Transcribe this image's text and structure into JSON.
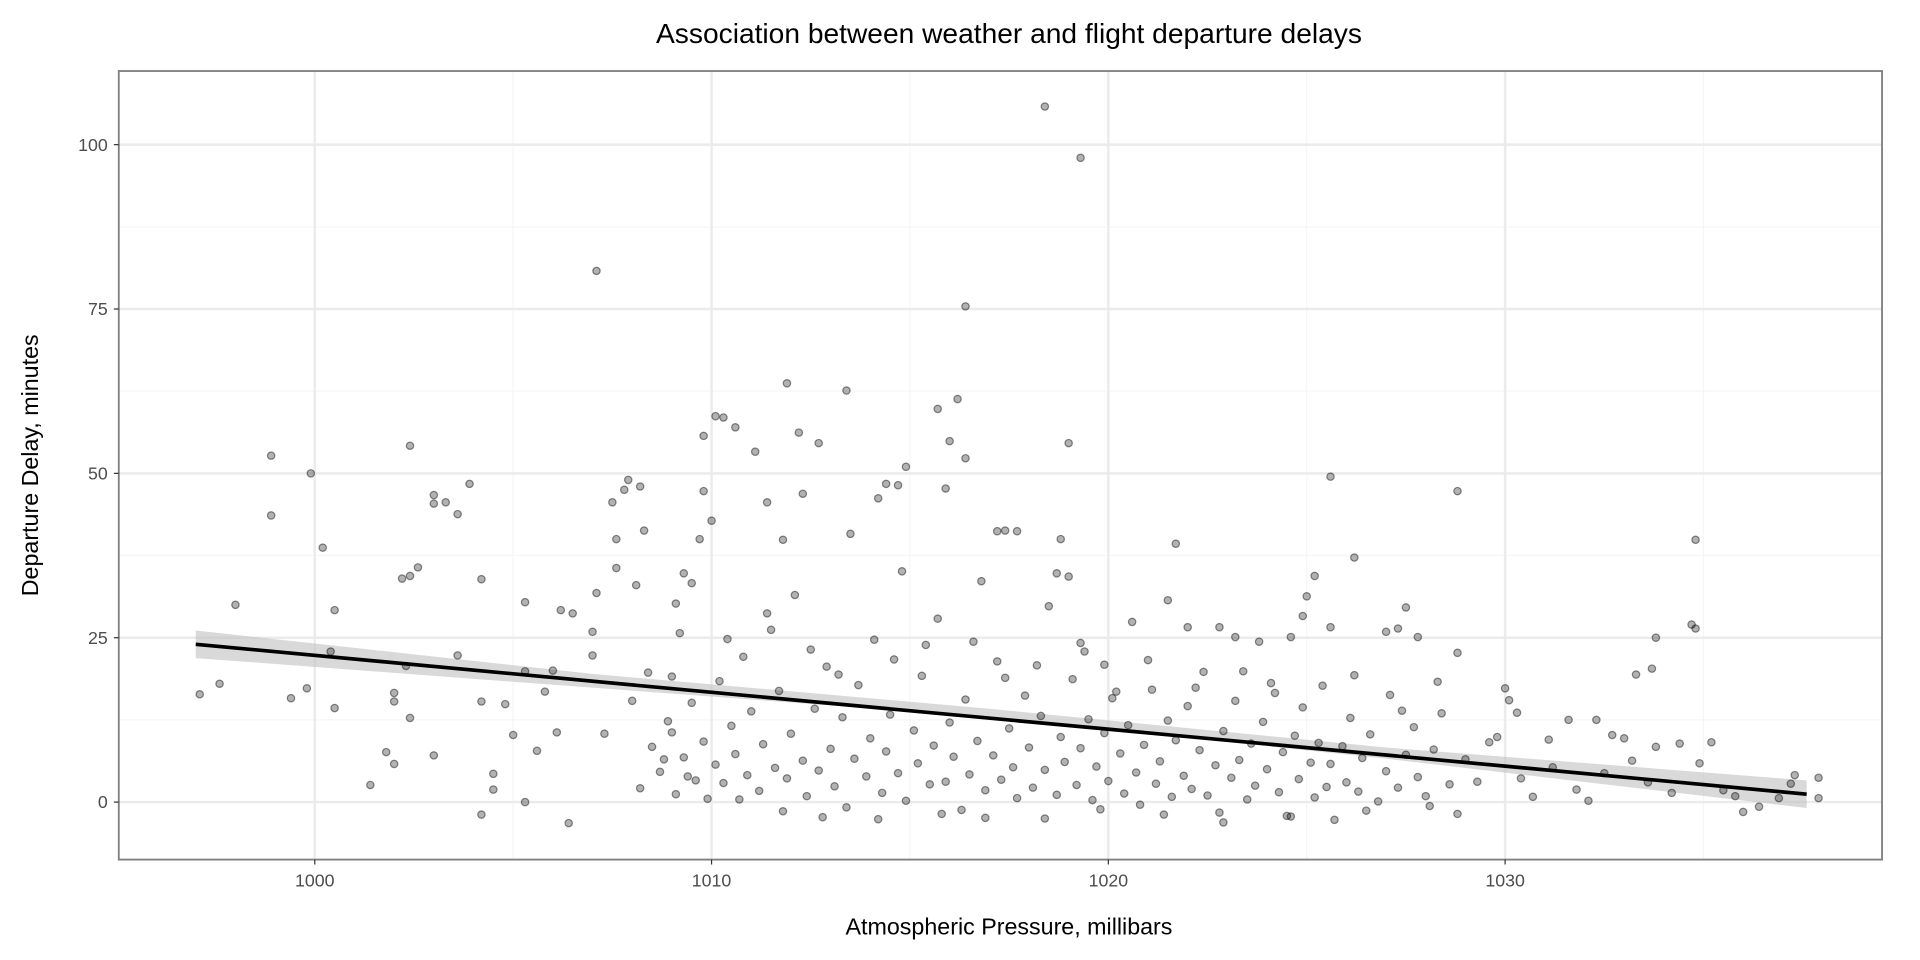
{
  "chart_data": {
    "type": "scatter",
    "title": "Association between weather and flight departure delays",
    "xlabel": "Atmospheric Pressure, millibars",
    "ylabel": "Departure Delay, minutes",
    "xlim": [
      995.06,
      1039.5
    ],
    "ylim": [
      -8.75,
      111.2
    ],
    "xticks": [
      1000,
      1010,
      1020,
      1030
    ],
    "yticks": [
      0,
      25,
      50,
      75,
      100
    ],
    "grid": true,
    "colors": {
      "point": "#000000",
      "line": "#000000",
      "ribbon": "#bfbfbf",
      "grid": "#ebebeb",
      "border": "#7f7f7f"
    },
    "trend": {
      "method": "linear",
      "x": [
        997.0,
        1037.6
      ],
      "y": [
        24.0,
        1.2
      ]
    },
    "ribbon": [
      [
        997.0,
        21.9,
        26.1
      ],
      [
        1007.0,
        17.4,
        19.5
      ],
      [
        1017.0,
        12.9,
        14.2
      ],
      [
        1027.0,
        6.6,
        8.3
      ],
      [
        1037.6,
        -0.9,
        3.3
      ]
    ],
    "points": [
      [
        997.1,
        16.4
      ],
      [
        997.6,
        18
      ],
      [
        998.0,
        30
      ],
      [
        998.9,
        52.7
      ],
      [
        998.9,
        43.6
      ],
      [
        999.4,
        15.8
      ],
      [
        999.8,
        17.3
      ],
      [
        999.9,
        50
      ],
      [
        1000.2,
        38.7
      ],
      [
        1000.5,
        29.2
      ],
      [
        1000.4,
        22.9
      ],
      [
        1000.5,
        14.3
      ],
      [
        1001.4,
        2.6
      ],
      [
        1001.8,
        7.6
      ],
      [
        1002.0,
        16.6
      ],
      [
        1002.0,
        15.3
      ],
      [
        1002.0,
        5.8
      ],
      [
        1002.2,
        34
      ],
      [
        1002.4,
        34.4
      ],
      [
        1002.6,
        35.7
      ],
      [
        1002.4,
        54.2
      ],
      [
        1002.3,
        20.7
      ],
      [
        1002.4,
        12.8
      ],
      [
        1003.0,
        46.7
      ],
      [
        1003.0,
        45.4
      ],
      [
        1003.3,
        45.6
      ],
      [
        1003.6,
        43.8
      ],
      [
        1003.9,
        48.4
      ],
      [
        1003.6,
        22.3
      ],
      [
        1003.0,
        7.1
      ],
      [
        1004.2,
        33.9
      ],
      [
        1004.2,
        15.3
      ],
      [
        1004.2,
        -1.9
      ],
      [
        1004.5,
        4.3
      ],
      [
        1004.5,
        1.9
      ],
      [
        1004.8,
        14.9
      ],
      [
        1005.0,
        10.2
      ],
      [
        1005.3,
        30.4
      ],
      [
        1005.3,
        19.9
      ],
      [
        1005.3,
        0
      ],
      [
        1005.6,
        7.8
      ],
      [
        1005.8,
        16.8
      ],
      [
        1006.0,
        20
      ],
      [
        1006.2,
        29.2
      ],
      [
        1006.5,
        28.7
      ],
      [
        1006.4,
        -3.2
      ],
      [
        1006.1,
        10.6
      ],
      [
        1007.1,
        80.8
      ],
      [
        1007.1,
        31.8
      ],
      [
        1007.0,
        25.9
      ],
      [
        1007.0,
        22.3
      ],
      [
        1007.3,
        10.4
      ],
      [
        1007.6,
        40
      ],
      [
        1007.5,
        45.6
      ],
      [
        1007.8,
        47.5
      ],
      [
        1007.9,
        49
      ],
      [
        1008.2,
        48
      ],
      [
        1007.6,
        35.6
      ],
      [
        1008.3,
        41.3
      ],
      [
        1008.1,
        33
      ],
      [
        1008.4,
        19.7
      ],
      [
        1008.8,
        6.5
      ],
      [
        1009.0,
        10.6
      ],
      [
        1009.1,
        30.2
      ],
      [
        1009.2,
        25.7
      ],
      [
        1009.3,
        34.8
      ],
      [
        1009.5,
        33.3
      ],
      [
        1009.8,
        47.3
      ],
      [
        1009.7,
        40
      ],
      [
        1009.8,
        55.7
      ],
      [
        1010.0,
        42.8
      ],
      [
        1010.1,
        58.7
      ],
      [
        1010.3,
        58.5
      ],
      [
        1010.6,
        57
      ],
      [
        1011.1,
        53.3
      ],
      [
        1011.8,
        39.9
      ],
      [
        1011.9,
        63.7
      ],
      [
        1012.2,
        56.2
      ],
      [
        1012.3,
        46.9
      ],
      [
        1012.7,
        54.6
      ],
      [
        1011.4,
        45.6
      ],
      [
        1013.4,
        62.6
      ],
      [
        1013.5,
        40.8
      ],
      [
        1014.2,
        46.2
      ],
      [
        1014.4,
        48.4
      ],
      [
        1014.7,
        48.2
      ],
      [
        1014.9,
        51
      ],
      [
        1015.7,
        59.8
      ],
      [
        1015.9,
        47.7
      ],
      [
        1016.2,
        61.3
      ],
      [
        1016.4,
        75.4
      ],
      [
        1016.4,
        52.3
      ],
      [
        1016.0,
        54.9
      ],
      [
        1017.2,
        41.2
      ],
      [
        1017.4,
        41.3
      ],
      [
        1017.7,
        41.2
      ],
      [
        1018.4,
        105.8
      ],
      [
        1019.3,
        98
      ],
      [
        1019.0,
        54.6
      ],
      [
        1018.8,
        40
      ],
      [
        1018.7,
        34.8
      ],
      [
        1019.0,
        34.3
      ],
      [
        1019.3,
        24.2
      ],
      [
        1019.9,
        20.9
      ],
      [
        1020.6,
        27.4
      ],
      [
        1021.5,
        30.7
      ],
      [
        1021.7,
        39.3
      ],
      [
        1022.0,
        26.6
      ],
      [
        1022.8,
        26.6
      ],
      [
        1023.2,
        25.1
      ],
      [
        1023.8,
        24.4
      ],
      [
        1024.6,
        25.1
      ],
      [
        1024.9,
        28.3
      ],
      [
        1025.0,
        31.3
      ],
      [
        1025.2,
        34.4
      ],
      [
        1025.6,
        49.5
      ],
      [
        1025.6,
        26.6
      ],
      [
        1026.2,
        37.2
      ],
      [
        1027.0,
        25.9
      ],
      [
        1027.5,
        29.6
      ],
      [
        1027.3,
        26.4
      ],
      [
        1027.8,
        25.1
      ],
      [
        1028.8,
        47.3
      ],
      [
        1028.8,
        22.7
      ],
      [
        1029.8,
        9.9
      ],
      [
        1030.0,
        17.3
      ],
      [
        1030.3,
        13.6
      ],
      [
        1031.1,
        9.5
      ],
      [
        1031.6,
        12.5
      ],
      [
        1032.3,
        12.5
      ],
      [
        1032.7,
        10.2
      ],
      [
        1033.0,
        9.7
      ],
      [
        1033.3,
        19.4
      ],
      [
        1033.7,
        20.3
      ],
      [
        1033.8,
        25
      ],
      [
        1034.4,
        8.9
      ],
      [
        1033.8,
        8.4
      ],
      [
        1034.7,
        27
      ],
      [
        1034.8,
        26.4
      ],
      [
        1034.8,
        39.9
      ],
      [
        1035.2,
        9.1
      ],
      [
        1035.8,
        0.9
      ],
      [
        1036.0,
        -1.5
      ],
      [
        1036.4,
        -0.7
      ],
      [
        1036.9,
        0.6
      ],
      [
        1037.2,
        2.8
      ],
      [
        1037.9,
        3.7
      ],
      [
        1037.9,
        0.6
      ],
      [
        1037.3,
        4.1
      ],
      [
        1008.2,
        2.1
      ],
      [
        1008.5,
        8.4
      ],
      [
        1008.7,
        4.6
      ],
      [
        1008.9,
        12.3
      ],
      [
        1009.1,
        1.2
      ],
      [
        1009.3,
        6.8
      ],
      [
        1009.5,
        15.1
      ],
      [
        1009.6,
        3.3
      ],
      [
        1009.8,
        9.2
      ],
      [
        1009.9,
        0.5
      ],
      [
        1010.1,
        5.7
      ],
      [
        1010.2,
        18.4
      ],
      [
        1010.3,
        2.9
      ],
      [
        1010.5,
        11.6
      ],
      [
        1010.6,
        7.3
      ],
      [
        1010.8,
        22.1
      ],
      [
        1010.9,
        4.1
      ],
      [
        1011.0,
        13.8
      ],
      [
        1011.2,
        1.7
      ],
      [
        1011.3,
        8.8
      ],
      [
        1011.5,
        26.2
      ],
      [
        1011.6,
        5.2
      ],
      [
        1011.7,
        16.9
      ],
      [
        1011.9,
        3.6
      ],
      [
        1012.0,
        10.4
      ],
      [
        1012.1,
        31.5
      ],
      [
        1012.3,
        6.3
      ],
      [
        1012.4,
        0.9
      ],
      [
        1012.6,
        14.2
      ],
      [
        1012.7,
        4.8
      ],
      [
        1012.9,
        20.6
      ],
      [
        1013.0,
        8.1
      ],
      [
        1013.1,
        2.4
      ],
      [
        1013.3,
        12.9
      ],
      [
        1013.4,
        -0.8
      ],
      [
        1013.6,
        6.6
      ],
      [
        1013.7,
        17.8
      ],
      [
        1013.9,
        3.9
      ],
      [
        1014.0,
        9.7
      ],
      [
        1014.1,
        24.7
      ],
      [
        1014.3,
        1.4
      ],
      [
        1014.4,
        7.7
      ],
      [
        1014.5,
        13.3
      ],
      [
        1014.7,
        4.4
      ],
      [
        1014.8,
        35.1
      ],
      [
        1014.9,
        0.2
      ],
      [
        1015.1,
        10.9
      ],
      [
        1015.2,
        5.9
      ],
      [
        1015.3,
        19.2
      ],
      [
        1015.5,
        2.7
      ],
      [
        1015.6,
        8.6
      ],
      [
        1015.7,
        27.9
      ],
      [
        1015.9,
        3.1
      ],
      [
        1016.0,
        12.1
      ],
      [
        1016.1,
        6.9
      ],
      [
        1016.3,
        -1.2
      ],
      [
        1016.4,
        15.6
      ],
      [
        1016.5,
        4.2
      ],
      [
        1016.7,
        9.3
      ],
      [
        1016.8,
        33.6
      ],
      [
        1016.9,
        1.8
      ],
      [
        1017.1,
        7.1
      ],
      [
        1017.2,
        21.4
      ],
      [
        1017.3,
        3.4
      ],
      [
        1017.5,
        11.2
      ],
      [
        1017.6,
        5.3
      ],
      [
        1017.7,
        0.6
      ],
      [
        1017.9,
        16.2
      ],
      [
        1018.0,
        8.3
      ],
      [
        1018.1,
        2.2
      ],
      [
        1018.3,
        13.1
      ],
      [
        1018.4,
        4.9
      ],
      [
        1018.5,
        29.8
      ],
      [
        1018.7,
        1.1
      ],
      [
        1018.8,
        9.9
      ],
      [
        1018.9,
        6.1
      ],
      [
        1019.1,
        18.7
      ],
      [
        1019.2,
        2.6
      ],
      [
        1019.3,
        8.2
      ],
      [
        1019.5,
        12.6
      ],
      [
        1019.6,
        0.3
      ],
      [
        1019.7,
        5.4
      ],
      [
        1019.9,
        10.5
      ],
      [
        1020.0,
        3.2
      ],
      [
        1020.1,
        15.8
      ],
      [
        1020.3,
        7.4
      ],
      [
        1020.4,
        1.3
      ],
      [
        1020.5,
        11.7
      ],
      [
        1020.7,
        4.5
      ],
      [
        1020.8,
        -0.4
      ],
      [
        1020.9,
        8.7
      ],
      [
        1021.1,
        17.1
      ],
      [
        1021.2,
        2.8
      ],
      [
        1021.3,
        6.2
      ],
      [
        1021.5,
        12.4
      ],
      [
        1021.6,
        0.8
      ],
      [
        1021.7,
        9.4
      ],
      [
        1021.9,
        4.0
      ],
      [
        1022.0,
        14.6
      ],
      [
        1022.1,
        2.0
      ],
      [
        1022.3,
        7.9
      ],
      [
        1022.4,
        19.8
      ],
      [
        1022.5,
        1.0
      ],
      [
        1022.7,
        5.6
      ],
      [
        1022.8,
        -1.6
      ],
      [
        1022.9,
        10.8
      ],
      [
        1023.1,
        3.7
      ],
      [
        1023.2,
        15.4
      ],
      [
        1023.3,
        6.4
      ],
      [
        1023.5,
        0.4
      ],
      [
        1023.6,
        8.9
      ],
      [
        1023.7,
        2.5
      ],
      [
        1023.9,
        12.2
      ],
      [
        1024.0,
        5.0
      ],
      [
        1024.1,
        18.1
      ],
      [
        1024.3,
        1.5
      ],
      [
        1024.4,
        7.6
      ],
      [
        1024.5,
        -2.1
      ],
      [
        1024.7,
        10.1
      ],
      [
        1024.8,
        3.5
      ],
      [
        1024.9,
        14.4
      ],
      [
        1025.1,
        6.0
      ],
      [
        1025.2,
        0.7
      ],
      [
        1025.3,
        9.0
      ],
      [
        1025.5,
        2.3
      ],
      [
        1025.6,
        5.8
      ],
      [
        1025.7,
        -2.7
      ],
      [
        1025.9,
        8.5
      ],
      [
        1026.0,
        3.0
      ],
      [
        1026.1,
        12.8
      ],
      [
        1026.3,
        1.6
      ],
      [
        1026.4,
        6.7
      ],
      [
        1026.6,
        10.3
      ],
      [
        1026.8,
        0.1
      ],
      [
        1027.0,
        4.7
      ],
      [
        1027.1,
        16.3
      ],
      [
        1027.3,
        2.2
      ],
      [
        1027.5,
        7.2
      ],
      [
        1027.7,
        11.4
      ],
      [
        1027.8,
        3.8
      ],
      [
        1028.0,
        0.9
      ],
      [
        1028.2,
        8.0
      ],
      [
        1028.4,
        13.5
      ],
      [
        1028.6,
        2.7
      ],
      [
        1028.8,
        -1.8
      ],
      [
        1029.0,
        6.5
      ],
      [
        1029.3,
        3.1
      ],
      [
        1029.6,
        9.1
      ],
      [
        1030.1,
        15.5
      ],
      [
        1030.4,
        3.6
      ],
      [
        1030.7,
        0.8
      ],
      [
        1031.2,
        5.3
      ],
      [
        1031.8,
        1.9
      ],
      [
        1032.1,
        0.2
      ],
      [
        1032.5,
        4.4
      ],
      [
        1033.2,
        6.3
      ],
      [
        1033.6,
        3.0
      ],
      [
        1034.2,
        1.4
      ],
      [
        1034.9,
        5.9
      ],
      [
        1035.5,
        1.8
      ],
      [
        1009.0,
        19.1
      ],
      [
        1010.4,
        24.8
      ],
      [
        1011.4,
        28.7
      ],
      [
        1012.5,
        23.2
      ],
      [
        1013.2,
        19.4
      ],
      [
        1014.6,
        21.7
      ],
      [
        1015.4,
        23.9
      ],
      [
        1016.6,
        24.4
      ],
      [
        1017.4,
        18.9
      ],
      [
        1018.2,
        20.8
      ],
      [
        1019.4,
        22.9
      ],
      [
        1020.2,
        16.8
      ],
      [
        1021.0,
        21.6
      ],
      [
        1022.2,
        17.4
      ],
      [
        1023.4,
        19.9
      ],
      [
        1024.2,
        16.6
      ],
      [
        1025.4,
        17.7
      ],
      [
        1026.2,
        19.3
      ],
      [
        1027.4,
        13.9
      ],
      [
        1028.3,
        18.3
      ],
      [
        1008.0,
        15.4
      ],
      [
        1009.4,
        3.9
      ],
      [
        1010.7,
        0.4
      ],
      [
        1011.8,
        -1.4
      ],
      [
        1012.8,
        -2.3
      ],
      [
        1014.2,
        -2.6
      ],
      [
        1015.8,
        -1.8
      ],
      [
        1016.9,
        -2.4
      ],
      [
        1018.4,
        -2.5
      ],
      [
        1019.8,
        -1.1
      ],
      [
        1021.4,
        -1.9
      ],
      [
        1022.9,
        -3.1
      ],
      [
        1024.6,
        -2.2
      ],
      [
        1026.5,
        -1.3
      ],
      [
        1028.1,
        -0.6
      ]
    ]
  }
}
